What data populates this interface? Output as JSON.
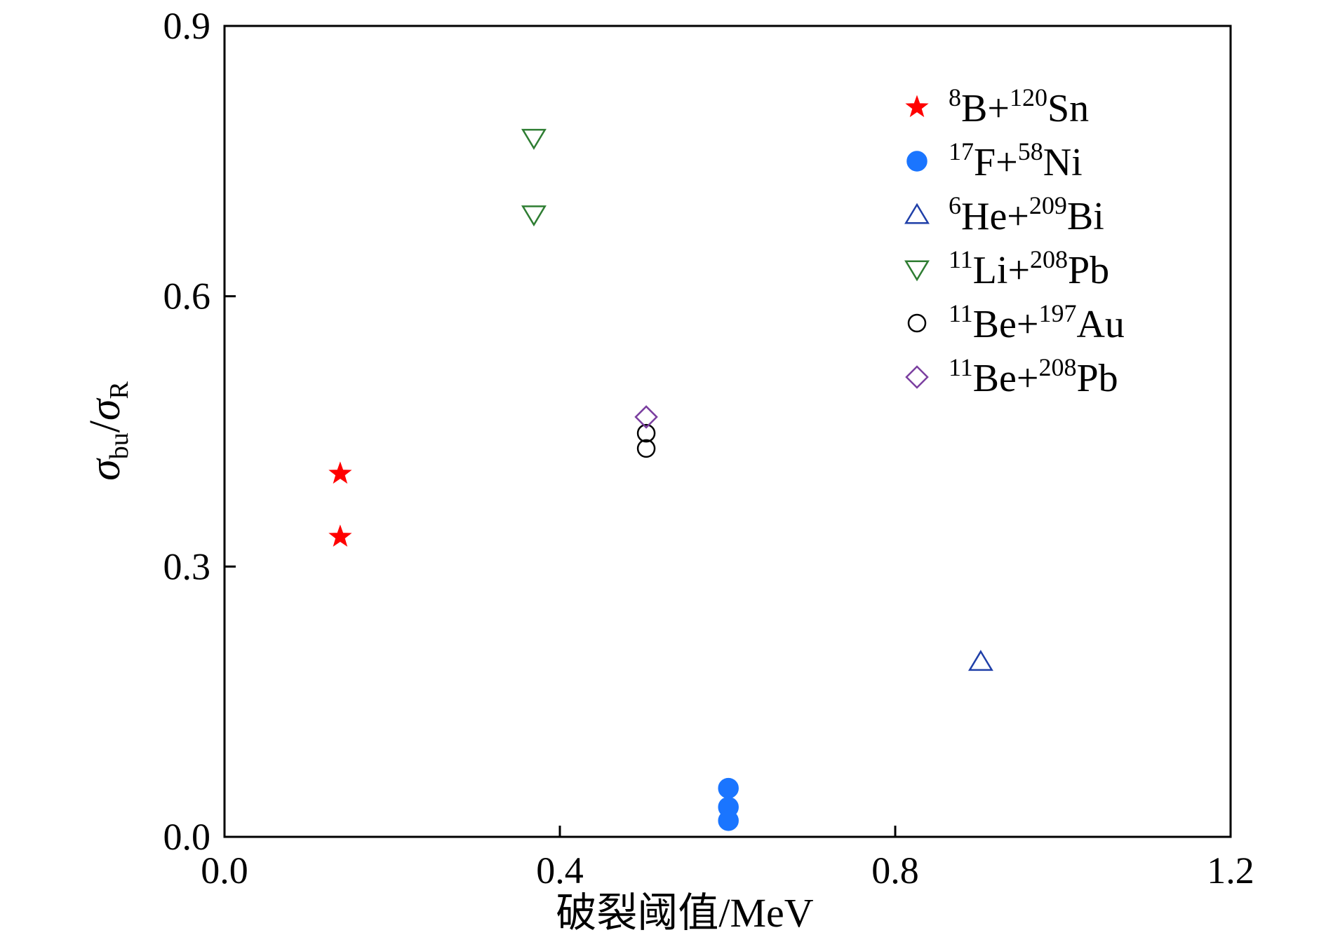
{
  "chart_data": {
    "type": "scatter",
    "title": "",
    "xlabel": "破裂阈值/MeV",
    "ylabel": {
      "symbol": "σ",
      "num_sub": "bu",
      "slash": "/",
      "den_sub": "R"
    },
    "xlim": [
      0.0,
      1.2
    ],
    "ylim": [
      0.0,
      0.9
    ],
    "x_ticks": [
      "0.0",
      "0.4",
      "0.8",
      "1.2"
    ],
    "y_ticks": [
      "0.0",
      "0.3",
      "0.6",
      "0.9"
    ],
    "grid": false,
    "legend_position": "top-right",
    "series": [
      {
        "name": "8B+120Sn",
        "label_parts": [
          {
            "t": "8",
            "s": true
          },
          {
            "t": "B+",
            "s": false
          },
          {
            "t": "120",
            "s": true
          },
          {
            "t": "Sn",
            "s": false
          }
        ],
        "marker": "star",
        "color": "#ff0000",
        "filled": true,
        "points": [
          {
            "x": 0.138,
            "y": 0.403
          },
          {
            "x": 0.138,
            "y": 0.333
          }
        ]
      },
      {
        "name": "17F+58Ni",
        "label_parts": [
          {
            "t": "17",
            "s": true
          },
          {
            "t": "F+",
            "s": false
          },
          {
            "t": "58",
            "s": true
          },
          {
            "t": "Ni",
            "s": false
          }
        ],
        "marker": "circle",
        "color": "#1a75ff",
        "filled": true,
        "points": [
          {
            "x": 0.601,
            "y": 0.054
          },
          {
            "x": 0.601,
            "y": 0.033
          },
          {
            "x": 0.601,
            "y": 0.018
          }
        ]
      },
      {
        "name": "6He+209Bi",
        "label_parts": [
          {
            "t": "6",
            "s": true
          },
          {
            "t": "He+",
            "s": false
          },
          {
            "t": "209",
            "s": true
          },
          {
            "t": "Bi",
            "s": false
          }
        ],
        "marker": "triangle-up",
        "color": "#1f3fa8",
        "filled": false,
        "points": [
          {
            "x": 0.902,
            "y": 0.194
          }
        ]
      },
      {
        "name": "11Li+208Pb",
        "label_parts": [
          {
            "t": "11",
            "s": true
          },
          {
            "t": "Li+",
            "s": false
          },
          {
            "t": "208",
            "s": true
          },
          {
            "t": "Pb",
            "s": false
          }
        ],
        "marker": "triangle-down",
        "color": "#2e7d32",
        "filled": false,
        "points": [
          {
            "x": 0.369,
            "y": 0.776
          },
          {
            "x": 0.369,
            "y": 0.691
          }
        ]
      },
      {
        "name": "11Be+197Au",
        "label_parts": [
          {
            "t": "11",
            "s": true
          },
          {
            "t": "Be+",
            "s": false
          },
          {
            "t": "197",
            "s": true
          },
          {
            "t": "Au",
            "s": false
          }
        ],
        "marker": "circle",
        "color": "#000000",
        "filled": false,
        "points": [
          {
            "x": 0.503,
            "y": 0.448
          },
          {
            "x": 0.503,
            "y": 0.431
          }
        ]
      },
      {
        "name": "11Be+208Pb",
        "label_parts": [
          {
            "t": "11",
            "s": true
          },
          {
            "t": "Be+",
            "s": false
          },
          {
            "t": "208",
            "s": true
          },
          {
            "t": "Pb",
            "s": false
          }
        ],
        "marker": "diamond",
        "color": "#7b3fa0",
        "filled": false,
        "points": [
          {
            "x": 0.503,
            "y": 0.466
          }
        ]
      }
    ]
  }
}
